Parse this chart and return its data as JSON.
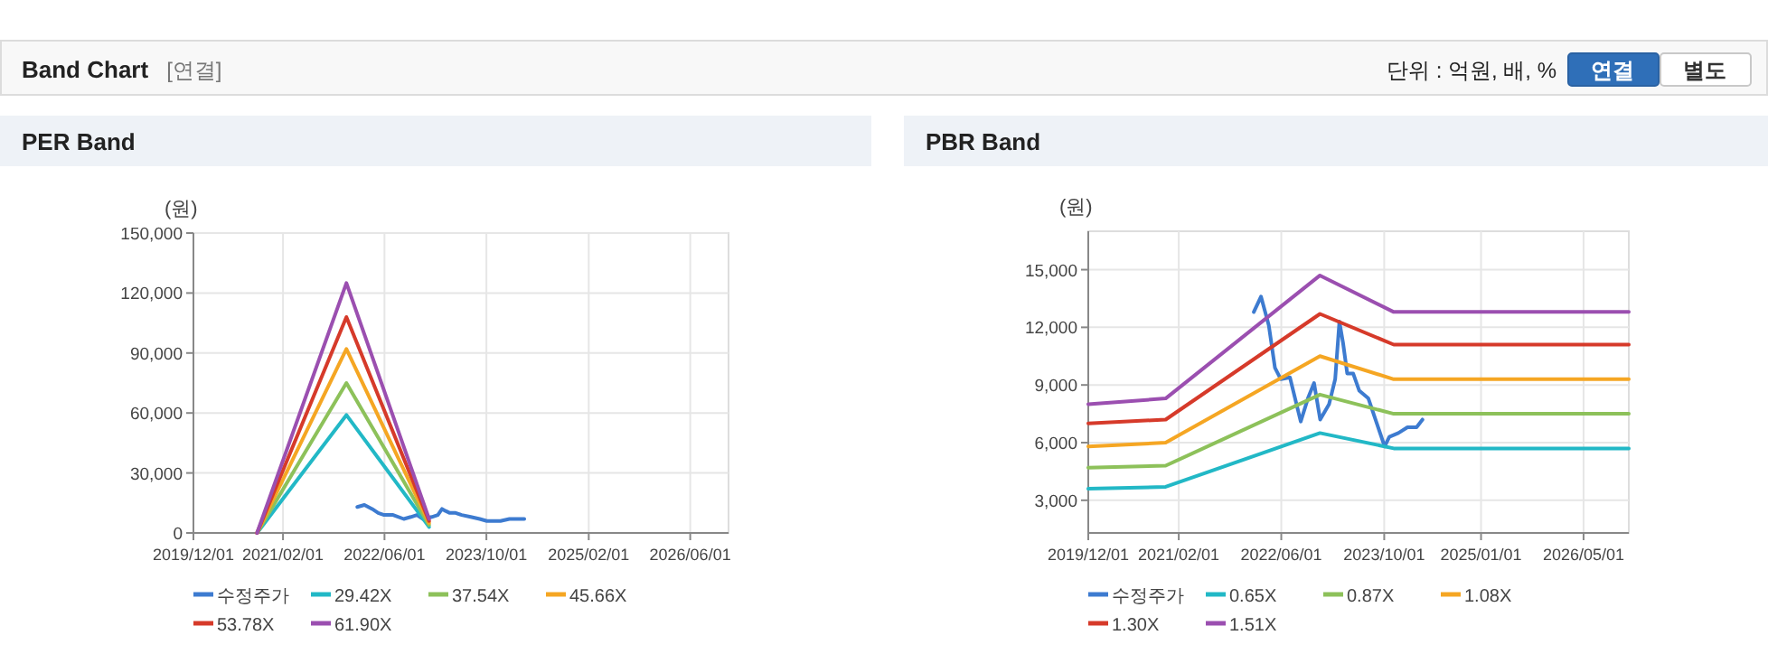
{
  "chart_data": [
    {
      "type": "other",
      "title": "Band Chart",
      "subtitle": "[연결]",
      "annotations": [
        "단위 : 억원, 배, %",
        "연결",
        "별도"
      ]
    },
    {
      "type": "line",
      "title": "PER Band",
      "ylabel": "(원)",
      "grid": true,
      "legend": "bottom",
      "marker": "none",
      "line_style": "solid",
      "xlim": [
        "2019-12-01",
        "2026-12-01"
      ],
      "xticks": [
        {
          "value": "2019-12-01",
          "label": "2019/12/01"
        },
        {
          "value": "2021-02-01",
          "label": "2021/02/01"
        },
        {
          "value": "2022-06-01",
          "label": "2022/06/01"
        },
        {
          "value": "2023-10-01",
          "label": "2023/10/01"
        },
        {
          "value": "2025-02-01",
          "label": "2025/02/01"
        },
        {
          "value": "2026-06-01",
          "label": "2026/06/01"
        }
      ],
      "ylim": [
        0,
        150000
      ],
      "yticks": [
        0,
        {
          "value": 30000,
          "label": "30,000"
        },
        {
          "value": 60000,
          "label": "60,000"
        },
        {
          "value": 90000,
          "label": "90,000"
        },
        {
          "value": 120000,
          "label": "120,000"
        },
        {
          "value": 150000,
          "label": "150,000"
        }
      ],
      "series": [
        {
          "name": "수정주가",
          "color": "#3d7bd0",
          "x": [
            "2022-01-22",
            "2022-02-25",
            "2022-04-03",
            "2022-05-02",
            "2022-05-30",
            "2022-07-12",
            "2022-09-01",
            "2022-10-05",
            "2022-11-03",
            "2022-12-02",
            "2023-01-13",
            "2023-02-11",
            "2023-03-03",
            "2023-03-20",
            "2023-04-09",
            "2023-05-07",
            "2023-06-05",
            "2023-07-18",
            "2023-08-30",
            "2023-10-03",
            "2023-10-25",
            "2023-12-07",
            "2024-01-19",
            "2024-03-02",
            "2024-03-30"
          ],
          "values": [
            13000,
            14000,
            12000,
            10000,
            9000,
            9000,
            7000,
            8000,
            9000,
            7000,
            8000,
            9000,
            12000,
            11000,
            10000,
            10000,
            9000,
            8000,
            7000,
            6000,
            6000,
            6000,
            7000,
            7000,
            7000
          ]
        },
        {
          "name": "29.42X",
          "color": "#22b8c6",
          "x": [
            "2020-09-30",
            "2021-12-01",
            "2022-12-31"
          ],
          "values": [
            0,
            59000,
            3000
          ]
        },
        {
          "name": "37.54X",
          "color": "#8dc15a",
          "x": [
            "2020-09-30",
            "2021-12-01",
            "2022-12-31"
          ],
          "values": [
            0,
            75000,
            4000
          ]
        },
        {
          "name": "45.66X",
          "color": "#f5a623",
          "x": [
            "2020-09-30",
            "2021-12-01",
            "2022-12-31"
          ],
          "values": [
            0,
            92000,
            5000
          ]
        },
        {
          "name": "53.78X",
          "color": "#d63a2a",
          "x": [
            "2020-09-30",
            "2021-12-01",
            "2022-12-31"
          ],
          "values": [
            0,
            108000,
            6000
          ]
        },
        {
          "name": "61.90X",
          "color": "#9b4fb0",
          "x": [
            "2020-09-30",
            "2021-12-01",
            "2022-12-31"
          ],
          "values": [
            0,
            125000,
            7000
          ]
        }
      ]
    },
    {
      "type": "line",
      "title": "PBR Band",
      "ylabel": "(원)",
      "grid": true,
      "legend": "bottom",
      "marker": "none",
      "line_style": "solid",
      "xlim": [
        "2019-12-01",
        "2026-12-01"
      ],
      "xticks": [
        {
          "value": "2019-12-01",
          "label": "2019/12/01"
        },
        {
          "value": "2021-02-01",
          "label": "2021/02/01"
        },
        {
          "value": "2022-06-01",
          "label": "2022/06/01"
        },
        {
          "value": "2023-10-01",
          "label": "2023/10/01"
        },
        {
          "value": "2025-01-01",
          "label": "2025/01/01"
        },
        {
          "value": "2026-05-01",
          "label": "2026/05/01"
        }
      ],
      "ylim": [
        1300,
        17000
      ],
      "yticks": [
        {
          "value": 3000,
          "label": "3,000"
        },
        {
          "value": 6000,
          "label": "6,000"
        },
        {
          "value": 9000,
          "label": "9,000"
        },
        {
          "value": 12000,
          "label": "12,000"
        },
        {
          "value": 15000,
          "label": "15,000"
        }
      ],
      "series": [
        {
          "name": "수정주가",
          "color": "#3d7bd0",
          "x": [
            "2022-01-22",
            "2022-02-25",
            "2022-04-03",
            "2022-05-02",
            "2022-05-30",
            "2022-07-12",
            "2022-09-01",
            "2022-10-05",
            "2022-11-03",
            "2022-12-02",
            "2023-01-13",
            "2023-02-11",
            "2023-03-03",
            "2023-03-20",
            "2023-04-09",
            "2023-05-07",
            "2023-06-05",
            "2023-07-18",
            "2023-08-30",
            "2023-10-03",
            "2023-10-25",
            "2023-12-07",
            "2024-01-19",
            "2024-03-02",
            "2024-03-30"
          ],
          "values": [
            12800,
            13600,
            12100,
            9900,
            9300,
            9400,
            7100,
            8300,
            9100,
            7200,
            8000,
            9300,
            12300,
            11200,
            9600,
            9600,
            8700,
            8300,
            6900,
            5800,
            6300,
            6500,
            6800,
            6800,
            7200
          ]
        },
        {
          "name": "0.65X",
          "color": "#22b8c6",
          "x": [
            "2019-12-01",
            "2020-12-01",
            "2022-12-01",
            "2023-11-15",
            "2026-12-01"
          ],
          "values": [
            3600,
            3700,
            6500,
            5700,
            5700
          ]
        },
        {
          "name": "0.87X",
          "color": "#8dc15a",
          "x": [
            "2019-12-01",
            "2020-12-01",
            "2022-12-01",
            "2023-11-15",
            "2026-12-01"
          ],
          "values": [
            4700,
            4800,
            8500,
            7500,
            7500
          ]
        },
        {
          "name": "1.08X",
          "color": "#f5a623",
          "x": [
            "2019-12-01",
            "2020-12-01",
            "2022-12-01",
            "2023-11-15",
            "2026-12-01"
          ],
          "values": [
            5800,
            6000,
            10500,
            9300,
            9300
          ]
        },
        {
          "name": "1.30X",
          "color": "#d63a2a",
          "x": [
            "2019-12-01",
            "2020-12-01",
            "2022-12-01",
            "2023-11-15",
            "2026-12-01"
          ],
          "values": [
            7000,
            7200,
            12700,
            11100,
            11100
          ]
        },
        {
          "name": "1.51X",
          "color": "#9b4fb0",
          "x": [
            "2019-12-01",
            "2020-12-01",
            "2022-12-01",
            "2023-11-15",
            "2026-12-01"
          ],
          "values": [
            8000,
            8300,
            14700,
            12800,
            12800
          ]
        }
      ]
    }
  ]
}
